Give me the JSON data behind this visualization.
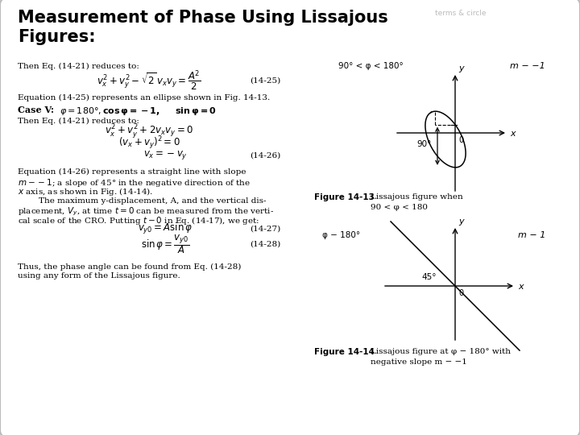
{
  "bg_color": "#e8e8e8",
  "white_bg": "#ffffff",
  "title": "Measurement of Phase Using Lissajous\nFigures:",
  "title_fontsize": 15,
  "body_fontsize": 7.5,
  "eq_fontsize": 8.5,
  "fig_label_fontsize": 7.5,
  "phi_label_fig13": "90° < φ < 180°",
  "m_label_fig13": "m − −1",
  "phi_label_fig14": "φ − 180°",
  "m_label_fig14": "m − 1",
  "terms_text": "terms & circle"
}
